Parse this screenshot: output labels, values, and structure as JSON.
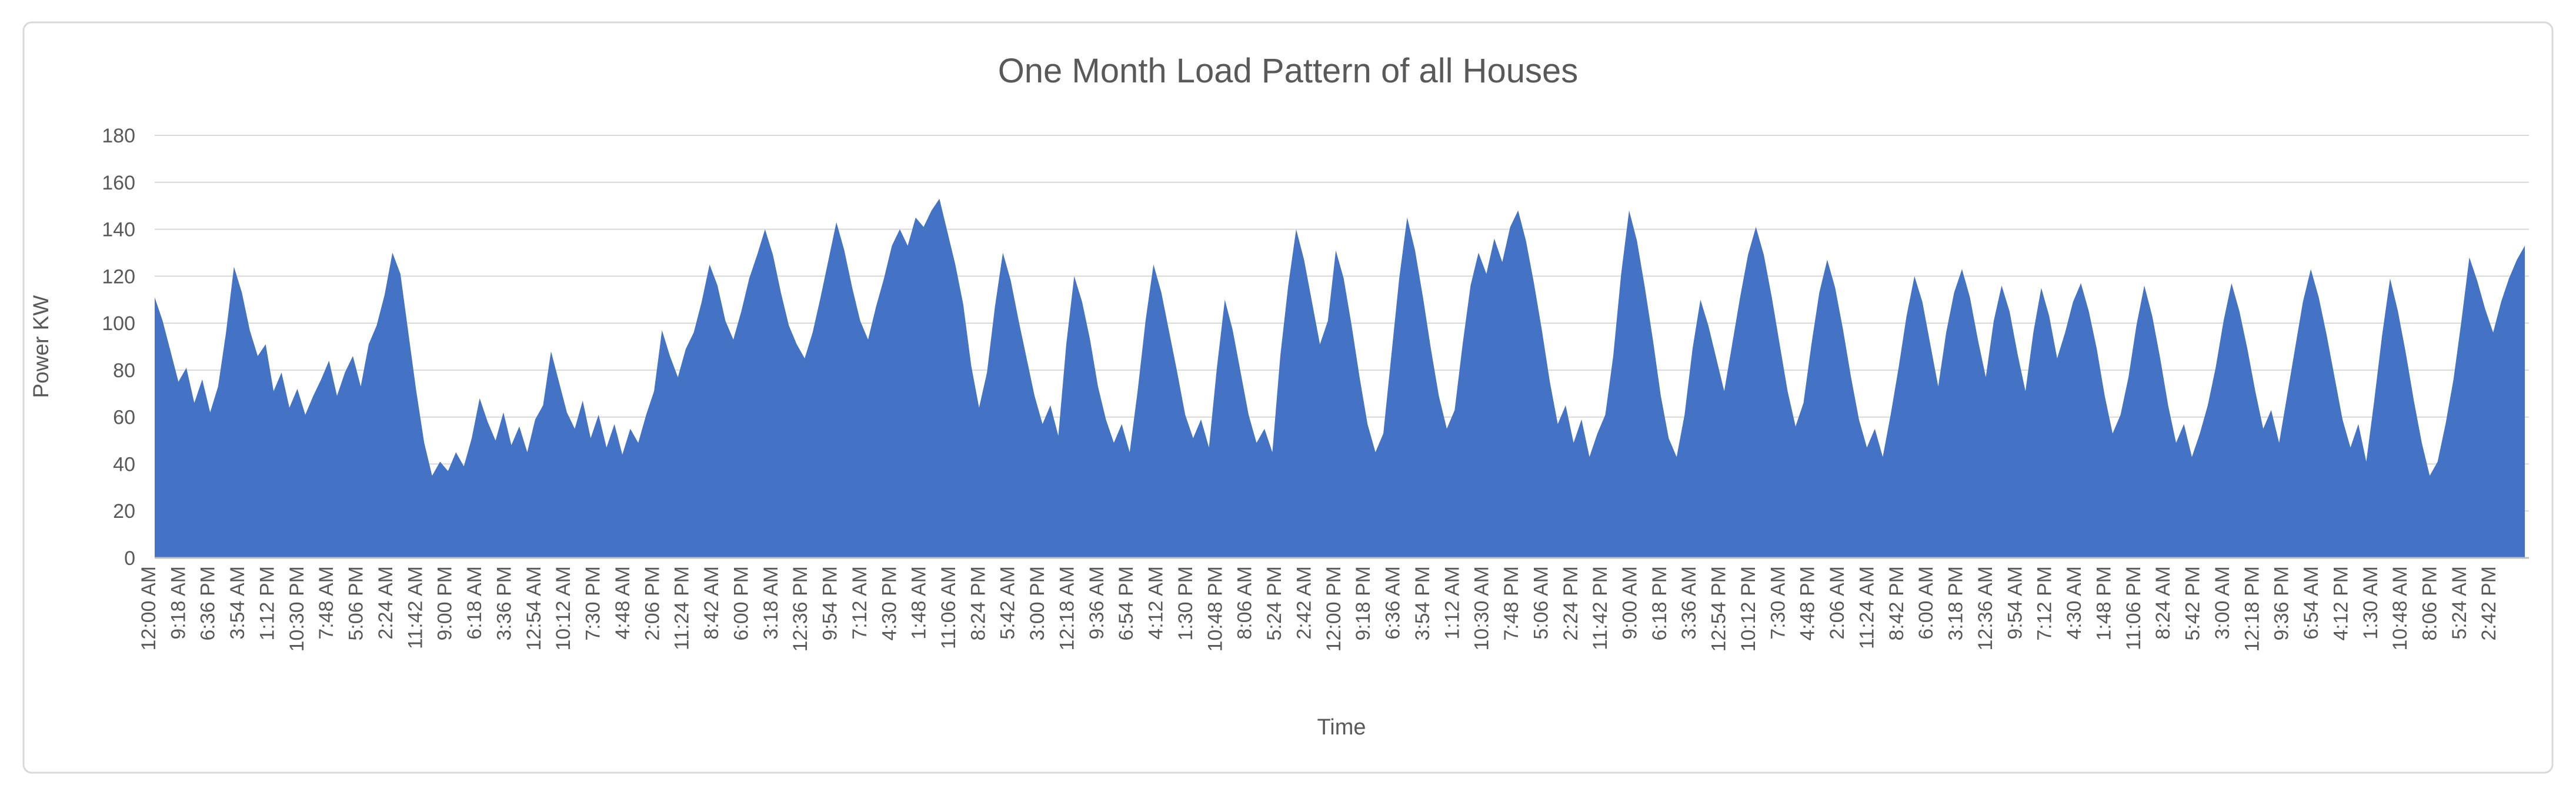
{
  "chart": {
    "title": "One Month Load Pattern of all Houses",
    "y_axis_title": "Power KW",
    "x_axis_title": "Time"
  },
  "colors": {
    "area": "#4472C4",
    "gridline": "#D9D9D9",
    "axis_line": "#BFBFBF",
    "text": "#595959",
    "frame_border": "#D9D9D9",
    "background": "#FFFFFF"
  },
  "chart_data": {
    "type": "area",
    "title": "One Month Load Pattern of all Houses",
    "xlabel": "Time",
    "ylabel": "Power KW",
    "ylim": [
      0,
      180
    ],
    "y_tick_step": 20,
    "y_ticks": [
      0,
      20,
      40,
      60,
      80,
      100,
      120,
      140,
      160,
      180
    ],
    "grid": true,
    "legend_position": "none",
    "x_tick_interval_minutes": 558,
    "categories": [
      "12:00 AM",
      "9:18 AM",
      "6:36 PM",
      "3:54 AM",
      "1:12 PM",
      "10:30 PM",
      "7:48 AM",
      "5:06 PM",
      "2:24 AM",
      "11:42 AM",
      "9:00 PM",
      "6:18 AM",
      "3:36 PM",
      "12:54 AM",
      "10:12 AM",
      "7:30 PM",
      "4:48 AM",
      "2:06 PM",
      "11:24 PM",
      "8:42 AM",
      "6:00 PM",
      "3:18 AM",
      "12:36 PM",
      "9:54 PM",
      "7:12 AM",
      "4:30 PM",
      "1:48 AM",
      "11:06 AM",
      "8:24 PM",
      "5:42 AM",
      "3:00 PM",
      "12:18 AM",
      "9:36 AM",
      "6:54 PM",
      "4:12 AM",
      "1:30 PM",
      "10:48 PM",
      "8:06 AM",
      "5:24 PM",
      "2:42 AM",
      "12:00 PM",
      "9:18 PM",
      "6:36 AM",
      "3:54 PM",
      "1:12 AM",
      "10:30 AM",
      "7:48 PM",
      "5:06 AM",
      "2:24 PM",
      "11:42 PM",
      "9:00 AM",
      "6:18 PM",
      "3:36 AM",
      "12:54 PM",
      "10:12 PM",
      "7:30 AM",
      "4:48 PM",
      "2:06 AM",
      "11:24 AM",
      "8:42 PM",
      "6:00 AM",
      "3:18 PM",
      "12:36 AM",
      "9:54 AM",
      "7:12 PM",
      "4:30 AM",
      "1:48 PM",
      "11:06 PM",
      "8:24 AM",
      "5:42 PM",
      "3:00 AM",
      "12:18 PM",
      "9:36 PM",
      "6:54 AM",
      "4:12 PM",
      "1:30 AM",
      "10:48 AM",
      "8:06 PM",
      "5:24 AM",
      "2:42 PM"
    ],
    "values": [
      111,
      101,
      88,
      75,
      81,
      66,
      76,
      62,
      73,
      96,
      124,
      113,
      97,
      86,
      91,
      71,
      79,
      64,
      72,
      61,
      69,
      76,
      84,
      69,
      79,
      86,
      73,
      91,
      99,
      112,
      130,
      121,
      96,
      71,
      49,
      35,
      41,
      37,
      45,
      39,
      51,
      68,
      58,
      50,
      62,
      48,
      56,
      45,
      59,
      65,
      88,
      75,
      62,
      55,
      67,
      51,
      61,
      47,
      57,
      44,
      55,
      49,
      61,
      71,
      97,
      86,
      77,
      89,
      96,
      109,
      125,
      116,
      101,
      93,
      105,
      119,
      129,
      140,
      129,
      113,
      99,
      91,
      85,
      96,
      111,
      127,
      143,
      131,
      115,
      101,
      93,
      107,
      119,
      133,
      140,
      133,
      145,
      141,
      148,
      153,
      139,
      125,
      108,
      82,
      64,
      79,
      107,
      130,
      118,
      101,
      85,
      69,
      57,
      65,
      52,
      91,
      120,
      109,
      93,
      73,
      59,
      49,
      57,
      45,
      71,
      101,
      125,
      113,
      96,
      79,
      61,
      51,
      59,
      47,
      81,
      110,
      97,
      79,
      61,
      49,
      55,
      45,
      86,
      116,
      140,
      127,
      109,
      91,
      101,
      131,
      119,
      99,
      77,
      57,
      45,
      53,
      86,
      119,
      145,
      131,
      111,
      89,
      69,
      55,
      63,
      91,
      116,
      130,
      121,
      136,
      126,
      141,
      148,
      135,
      117,
      97,
      75,
      57,
      65,
      49,
      59,
      43,
      53,
      61,
      86,
      121,
      148,
      135,
      115,
      93,
      69,
      51,
      43,
      61,
      89,
      110,
      99,
      85,
      71,
      91,
      111,
      129,
      141,
      129,
      111,
      91,
      71,
      56,
      66,
      91,
      113,
      127,
      115,
      97,
      77,
      59,
      47,
      55,
      43,
      61,
      81,
      103,
      120,
      109,
      91,
      73,
      96,
      113,
      123,
      111,
      93,
      77,
      101,
      116,
      105,
      87,
      71,
      96,
      115,
      103,
      85,
      96,
      109,
      117,
      105,
      89,
      69,
      53,
      61,
      77,
      99,
      116,
      103,
      85,
      65,
      49,
      57,
      43,
      53,
      65,
      81,
      101,
      117,
      105,
      89,
      71,
      55,
      63,
      49,
      69,
      89,
      109,
      123,
      111,
      95,
      77,
      59,
      47,
      57,
      41,
      67,
      95,
      119,
      105,
      87,
      67,
      49,
      35,
      41,
      57,
      76,
      101,
      128,
      118,
      106,
      96,
      109,
      119,
      127,
      133
    ]
  }
}
